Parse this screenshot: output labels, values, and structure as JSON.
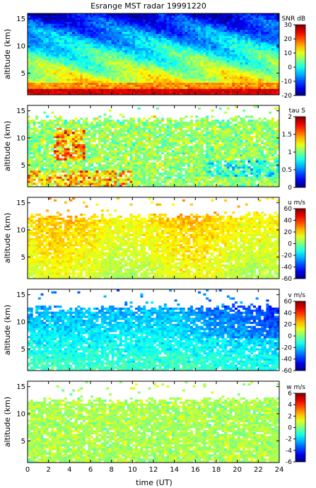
{
  "chart_data": {
    "type": "heatmap",
    "title": "Esrange MST radar 19991220",
    "xlabel": "time (UT)",
    "xlim": [
      0,
      24
    ],
    "x_ticks": [
      "0",
      "2",
      "4",
      "6",
      "8",
      "10",
      "12",
      "14",
      "16",
      "18",
      "20",
      "22",
      "24"
    ],
    "panels": [
      {
        "name": "snr",
        "ylabel": "altitude (km)",
        "ylim": [
          1,
          16
        ],
        "y_ticks": [
          "5",
          "10",
          "15"
        ],
        "colorbar": {
          "label": "SNR dB",
          "range": [
            -20,
            30
          ],
          "ticks": [
            "30",
            "20",
            "10",
            "0",
            "-10",
            "-20"
          ]
        },
        "description": "strong return near ground (about 20-30 dB below 3 km), decreasing with altitude to about -15 dB at 14-16 km"
      },
      {
        "name": "tau",
        "ylabel": "altitude (km)",
        "ylim": [
          1,
          16
        ],
        "y_ticks": [
          "5",
          "10",
          "15"
        ],
        "colorbar": {
          "label": "tau S",
          "range": [
            0,
            2
          ],
          "ticks": [
            "2",
            "1.5",
            "1",
            "0.5",
            "0"
          ]
        },
        "description": "mostly 0.8-1.3 s between 2 and 13 km, higher values (1.5-2) at low altitudes early in the day"
      },
      {
        "name": "u",
        "ylabel": "altitude (km)",
        "ylim": [
          1,
          16
        ],
        "y_ticks": [
          "5",
          "10",
          "15"
        ],
        "colorbar": {
          "label": "u m/s",
          "range": [
            -60,
            60
          ],
          "ticks": [
            "60",
            "40",
            "20",
            "0",
            "-20",
            "-40",
            "-60"
          ]
        },
        "description": "zonal wind mostly 5-25 m/s, increasing with altitude, data up to about 12 km"
      },
      {
        "name": "v",
        "ylabel": "altitude (km)",
        "ylim": [
          1,
          16
        ],
        "y_ticks": [
          "5",
          "10",
          "15"
        ],
        "colorbar": {
          "label": "v m/s",
          "range": [
            -60,
            60
          ],
          "ticks": [
            "60",
            "40",
            "20",
            "0",
            "-20",
            "-40",
            "-60"
          ]
        },
        "description": "meridional wind mostly -5 to -35 m/s, most negative near 8-12 km late in the day"
      },
      {
        "name": "w",
        "ylabel": "altitude (km)",
        "ylim": [
          1,
          16
        ],
        "y_ticks": [
          "5",
          "10",
          "15"
        ],
        "colorbar": {
          "label": "w m/s",
          "range": [
            -6,
            6
          ],
          "ticks": [
            "6",
            "4",
            "2",
            "0",
            "-2",
            "-4",
            "-6"
          ]
        },
        "description": "vertical wind near 0 to +1 m/s throughout, data up to about 12 km"
      }
    ]
  }
}
